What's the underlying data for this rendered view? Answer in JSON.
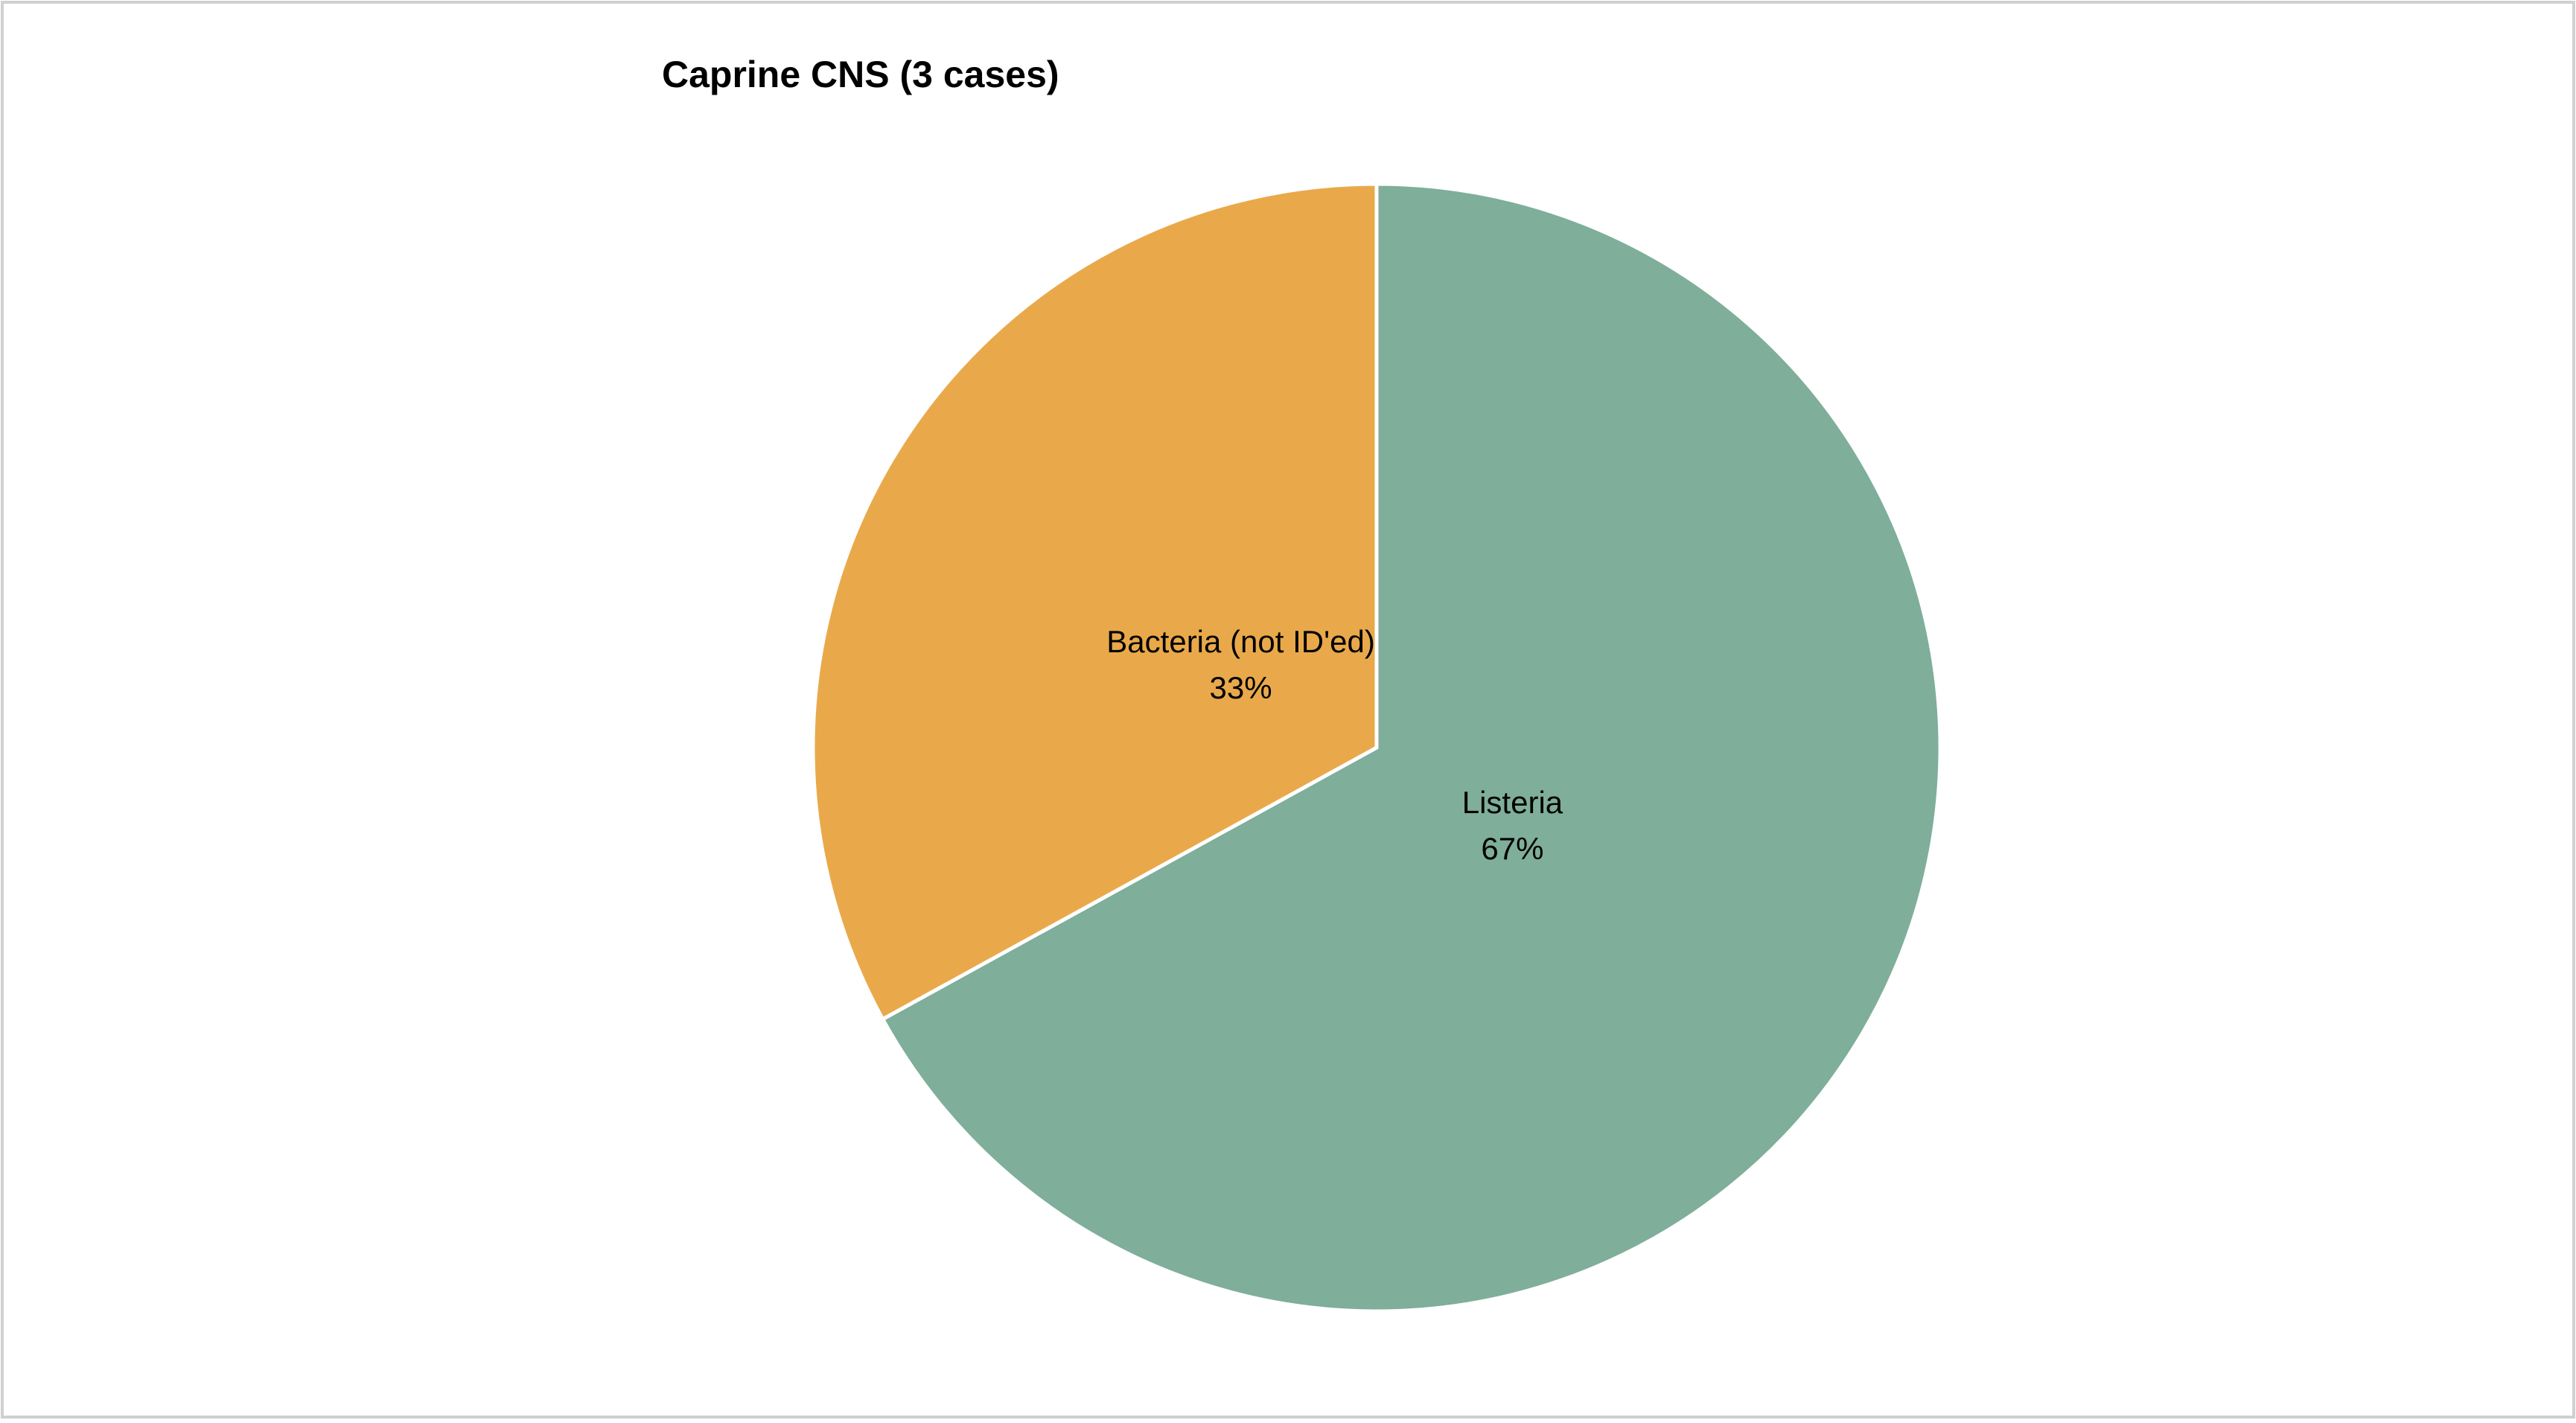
{
  "chart_data": {
    "type": "pie",
    "title": "Caprine CNS (3 cases)",
    "categories": [
      "Listeria",
      "Bacteria (not ID'ed)"
    ],
    "values": [
      67,
      33
    ],
    "value_labels": [
      "67%",
      "33%"
    ],
    "colors": [
      "#7fae9b",
      "#e9a94b"
    ]
  }
}
